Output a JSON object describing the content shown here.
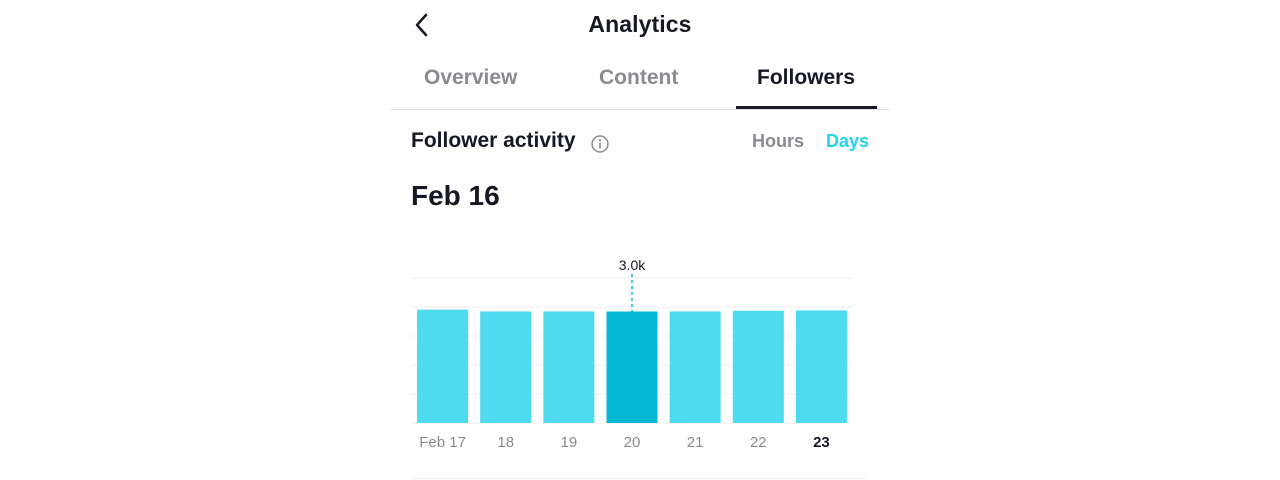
{
  "header": {
    "title": "Analytics",
    "back_icon": "chevron-left-icon"
  },
  "tabs": [
    {
      "label": "Overview",
      "active": false
    },
    {
      "label": "Content",
      "active": false
    },
    {
      "label": "Followers",
      "active": true
    }
  ],
  "follower_activity": {
    "title": "Follower activity",
    "info_icon": "info-icon",
    "toggle": {
      "hours": "Hours",
      "days": "Days",
      "selected": "Days"
    },
    "selected_date": "Feb 16"
  },
  "colors": {
    "accent": "#20d5ec",
    "bar": "#4fdbef",
    "bar_selected": "#05b9d3",
    "text_primary": "#161823",
    "text_secondary": "#8a8b91"
  },
  "chart_data": {
    "type": "bar",
    "categories": [
      "Feb 17",
      "18",
      "19",
      "20",
      "21",
      "22",
      "23"
    ],
    "values": [
      3.05,
      3.0,
      3.0,
      3.0,
      3.0,
      3.02,
      3.03
    ],
    "highlight_index": 3,
    "highlight_label": "3.0k",
    "bold_category_index": 6,
    "ylim": [
      0,
      3.9
    ],
    "grid": true
  }
}
